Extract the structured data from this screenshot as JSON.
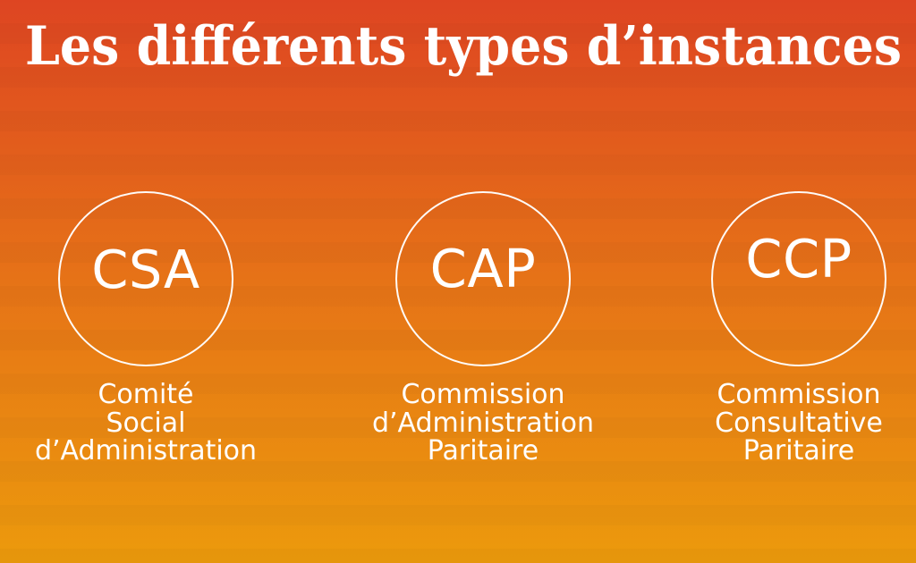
{
  "title": "Les différents types d’instances",
  "colors": {
    "bg_top": "#de4522",
    "bg_mid": "#e67317",
    "bg_bottom": "#ec9a0c",
    "text": "#ffffff"
  },
  "instances": [
    {
      "abbr": "CSA",
      "name_lines": [
        "Comité",
        "Social",
        "d’Administration"
      ]
    },
    {
      "abbr": "CAP",
      "name_lines": [
        "Commission",
        "d’Administration",
        "Paritaire"
      ]
    },
    {
      "abbr": "CCP",
      "name_lines": [
        "Commission",
        "Consultative",
        "Paritaire"
      ]
    }
  ]
}
